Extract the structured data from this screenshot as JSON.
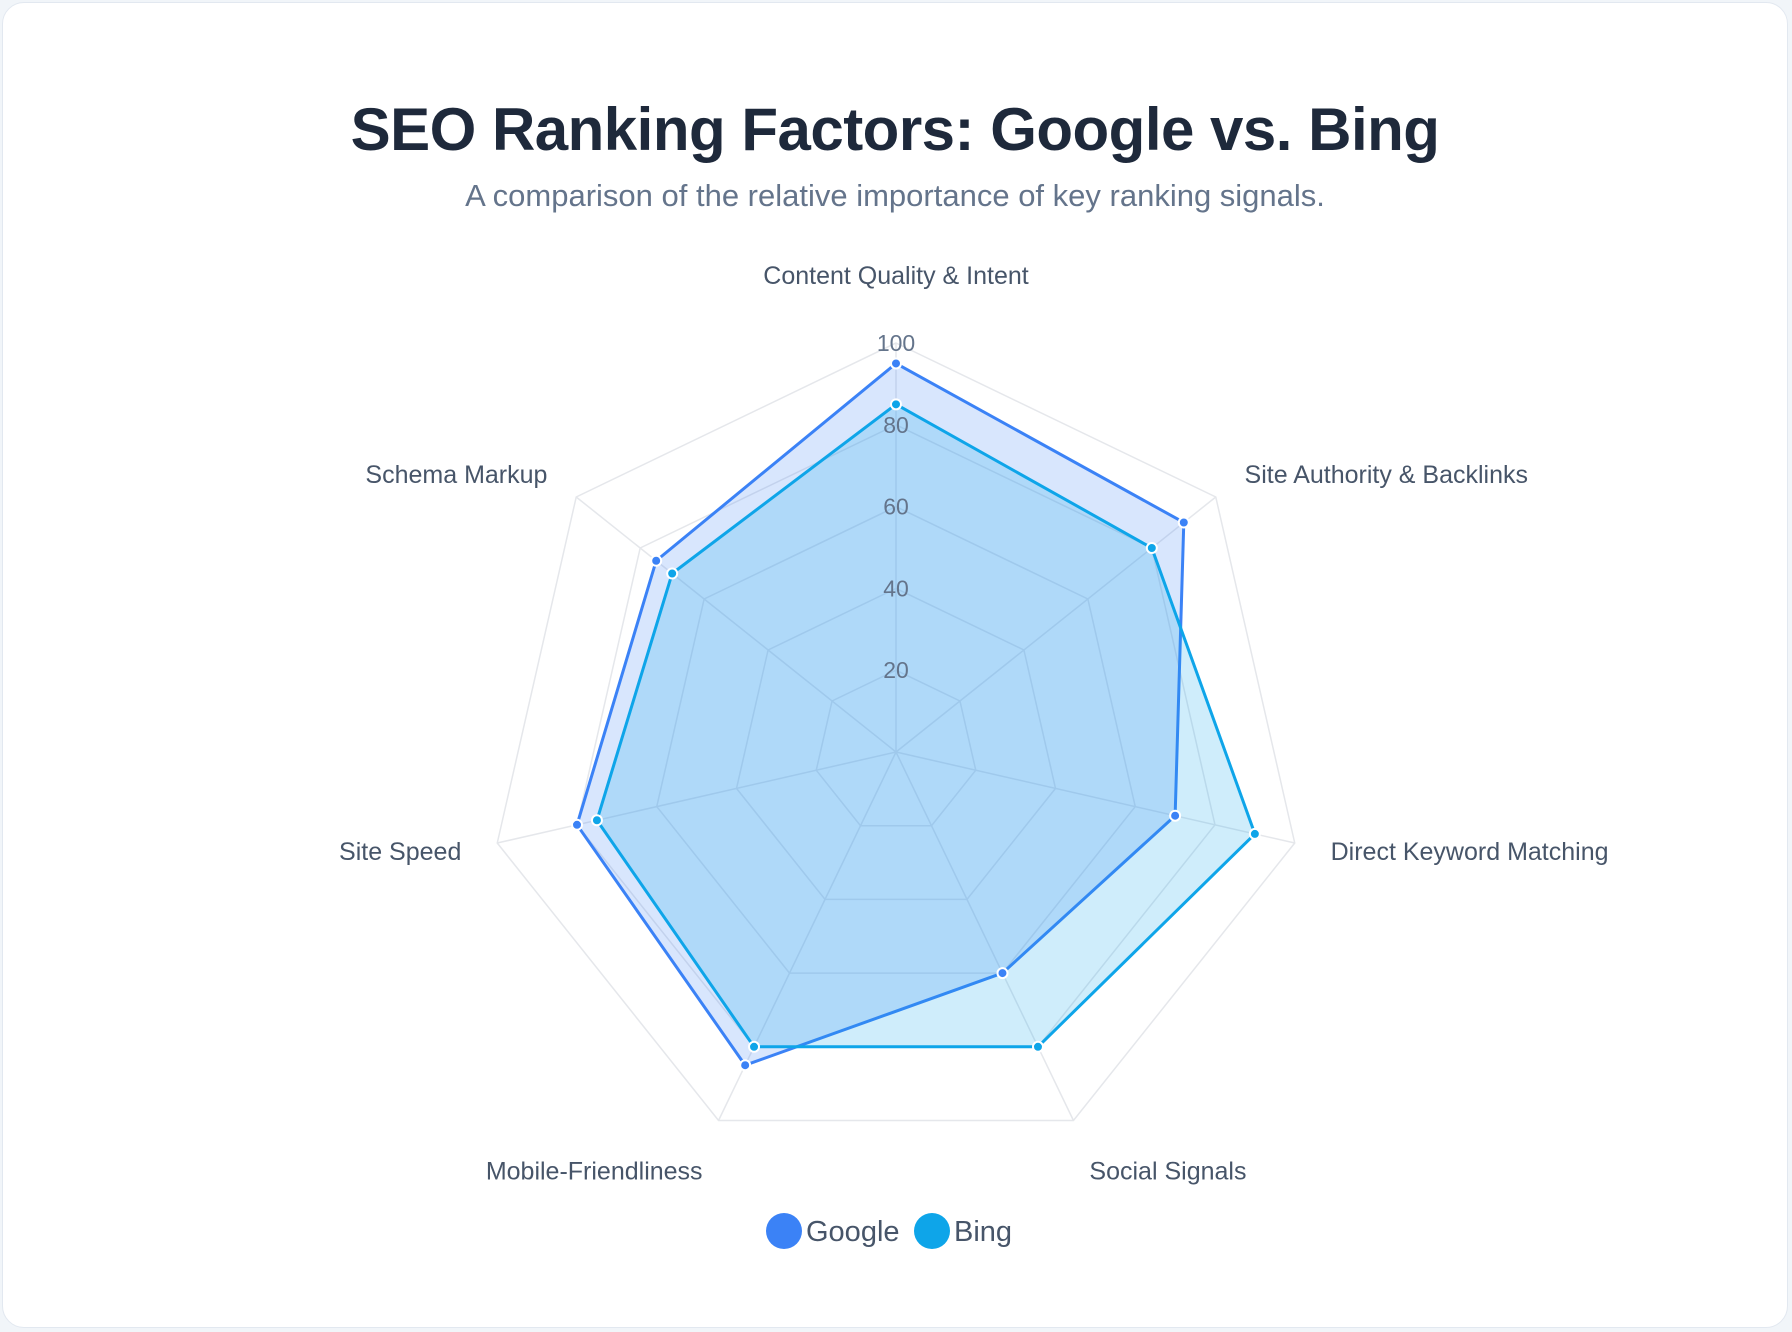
{
  "chart_data": {
    "type": "radar",
    "title": "SEO Ranking Factors: Google vs. Bing",
    "subtitle": "A comparison of the relative importance of key ranking signals.",
    "categories": [
      "Content Quality & Intent",
      "Site Authority & Backlinks",
      "Direct Keyword Matching",
      "Social Signals",
      "Mobile-Friendliness",
      "Site Speed",
      "Schema Markup"
    ],
    "series": [
      {
        "name": "Google",
        "values": [
          95,
          90,
          70,
          60,
          85,
          80,
          75
        ],
        "color": "#3b82f6",
        "fill": "rgba(59,130,246,0.2)"
      },
      {
        "name": "Bing",
        "values": [
          85,
          80,
          90,
          80,
          80,
          75,
          70
        ],
        "color": "#0ea5e9",
        "fill": "rgba(14,165,233,0.2)"
      }
    ],
    "rlim": [
      0,
      100
    ],
    "ticks": [
      "20",
      "40",
      "60",
      "80",
      "100"
    ],
    "grid": true,
    "legend": "bottom"
  }
}
